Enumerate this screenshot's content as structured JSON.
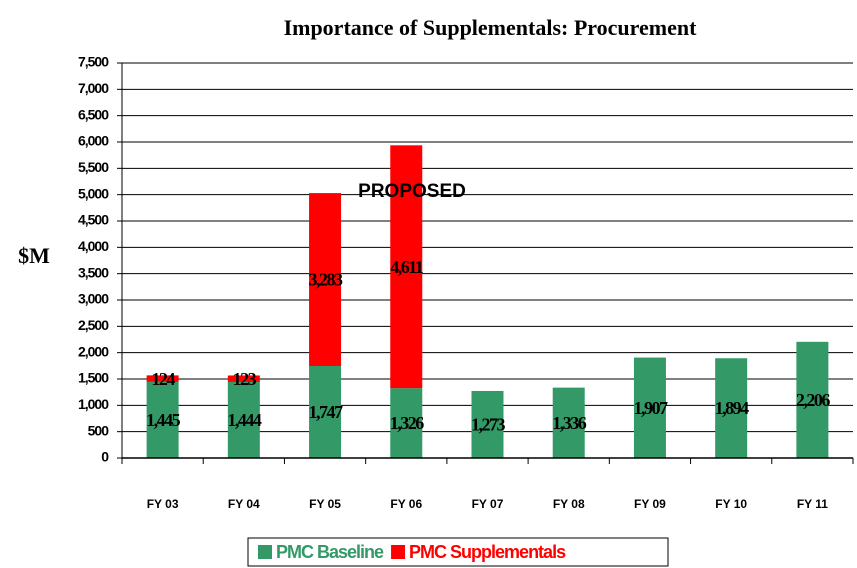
{
  "chart_data": {
    "type": "bar",
    "stacked": true,
    "title": "Importance of Supplementals: Procurement",
    "ylabel": "$M",
    "annotation": "PROPOSED",
    "categories": [
      "FY 03",
      "FY 04",
      "FY 05",
      "FY 06",
      "FY 07",
      "FY 08",
      "FY 09",
      "FY 10",
      "FY 11"
    ],
    "series": [
      {
        "name": "PMC Baseline",
        "color": "#339966",
        "values": [
          1445,
          1444,
          1747,
          1326,
          1273,
          1336,
          1907,
          1894,
          2206
        ],
        "value_labels": [
          "1,445",
          "1,444",
          "1,747",
          "1,326",
          "1,273",
          "1,336",
          "1,907",
          "1,894",
          "2,206"
        ]
      },
      {
        "name": "PMC Supplementals",
        "color": "#ff0000",
        "values": [
          124,
          123,
          3283,
          4611,
          null,
          null,
          null,
          null,
          null
        ],
        "value_labels": [
          "124",
          "123",
          "3,283",
          "4,611",
          null,
          null,
          null,
          null,
          null
        ]
      }
    ],
    "ylim": [
      0,
      7500
    ],
    "yticks": [
      0,
      500,
      {
        "value": 1000,
        "label": "1,000"
      },
      {
        "value": 1500,
        "label": "1,500"
      },
      {
        "value": 2000,
        "label": "2,000"
      },
      {
        "value": 2500,
        "label": "2,500"
      },
      {
        "value": 3000,
        "label": "3,000"
      },
      {
        "value": 3500,
        "label": "3,500"
      },
      {
        "value": 4000,
        "label": "4,000"
      },
      {
        "value": 4500,
        "label": "4,500"
      },
      {
        "value": 5000,
        "label": "5,000"
      },
      {
        "value": 5500,
        "label": "5,500"
      },
      {
        "value": 6000,
        "label": "6,000"
      },
      {
        "value": 6500,
        "label": "6,500"
      },
      {
        "value": 7000,
        "label": "7,000"
      },
      {
        "value": 7500,
        "label": "7,500"
      }
    ],
    "grid": true,
    "legend": "bottom"
  }
}
